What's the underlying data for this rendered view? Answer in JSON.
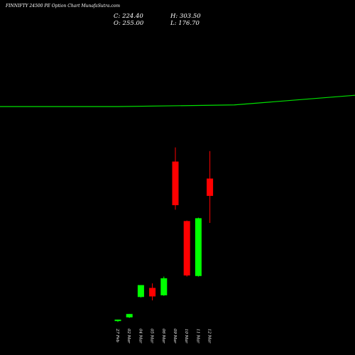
{
  "header": {
    "title": "FINNIFTY 24500  PE Option  Chart MunafaSutra.com",
    "close": "C: 224.40",
    "open": "O: 255.00",
    "high": "H: 303.50",
    "low": "L: 176.70"
  },
  "colors": {
    "background": "#000000",
    "up": "#00ff00",
    "down": "#ff0000",
    "line": "#00e000",
    "text": "#ffffff"
  },
  "chart_data": {
    "type": "candlestick",
    "title": "FINNIFTY 24500  PE Option  Chart MunafaSutra.com",
    "categories": [
      "27 Feb",
      "02 Mar",
      "04 Mar",
      "05 Mar",
      "06 Mar",
      "09 Mar",
      "10 Mar",
      "11 Mar",
      "12 Mar"
    ],
    "candles": [
      {
        "date": "27 Feb",
        "open": 4,
        "high": 6,
        "low": 2,
        "close": 6,
        "color": "up"
      },
      {
        "date": "02 Mar",
        "open": 10,
        "high": 14,
        "low": 9,
        "close": 16,
        "color": "up"
      },
      {
        "date": "04 Mar",
        "open": 46,
        "high": 66,
        "low": 45,
        "close": 67,
        "color": "up"
      },
      {
        "date": "05 Mar",
        "open": 62,
        "high": 70,
        "low": 40,
        "close": 47,
        "color": "down"
      },
      {
        "date": "06 Mar",
        "open": 49,
        "high": 82,
        "low": 48,
        "close": 79,
        "color": "up"
      },
      {
        "date": "09 Mar",
        "open": 285,
        "high": 310,
        "low": 200,
        "close": 208,
        "color": "down"
      },
      {
        "date": "10 Mar",
        "open": 180,
        "high": 181,
        "low": 82,
        "close": 84,
        "color": "down"
      },
      {
        "date": "11 Mar",
        "open": 83,
        "high": 186,
        "low": 82,
        "close": 185,
        "color": "up"
      },
      {
        "date": "12 Mar",
        "open": 255,
        "high": 303.5,
        "low": 176.7,
        "close": 224.4,
        "color": "down"
      }
    ],
    "line": {
      "x_fraction": [
        0,
        0.33,
        0.66,
        1
      ],
      "values": [
        382,
        382,
        385,
        402
      ]
    },
    "ylim": [
      0,
      520
    ],
    "grid": false,
    "legend": "none"
  }
}
